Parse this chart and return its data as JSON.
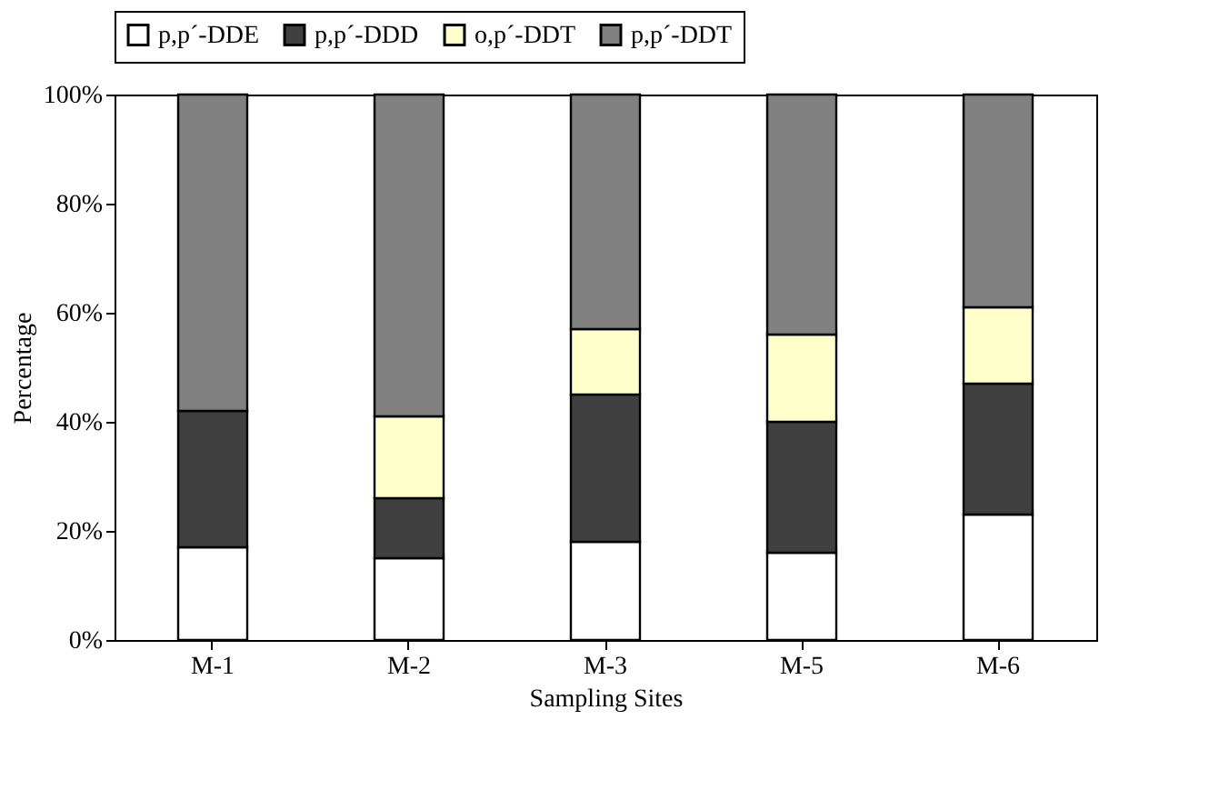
{
  "chart_data": {
    "type": "bar",
    "stacked": true,
    "xlabel": "Sampling Sites",
    "ylabel": "Percentage",
    "categories": [
      "M-1",
      "M-2",
      "M-3",
      "M-5",
      "M-6"
    ],
    "series": [
      {
        "name": "p,p´-DDE",
        "color": "#ffffff",
        "values": [
          17,
          15,
          18,
          16,
          23
        ]
      },
      {
        "name": "p,p´-DDD",
        "color": "#404040",
        "values": [
          25,
          11,
          27,
          24,
          24
        ]
      },
      {
        "name": "o,p´-DDT",
        "color": "#ffffcc",
        "values": [
          null,
          15,
          12,
          16,
          14
        ]
      },
      {
        "name": "p,p´-DDT",
        "color": "#808080",
        "values": [
          58,
          59,
          43,
          44,
          39
        ]
      }
    ],
    "ylim": [
      0,
      100
    ],
    "yticks": [
      {
        "value": 0,
        "label": "0%"
      },
      {
        "value": 20,
        "label": "20%"
      },
      {
        "value": 40,
        "label": "40%"
      },
      {
        "value": 60,
        "label": "60%"
      },
      {
        "value": 80,
        "label": "80%"
      },
      {
        "value": 100,
        "label": "100%"
      }
    ],
    "grid": false,
    "legend": "top"
  }
}
